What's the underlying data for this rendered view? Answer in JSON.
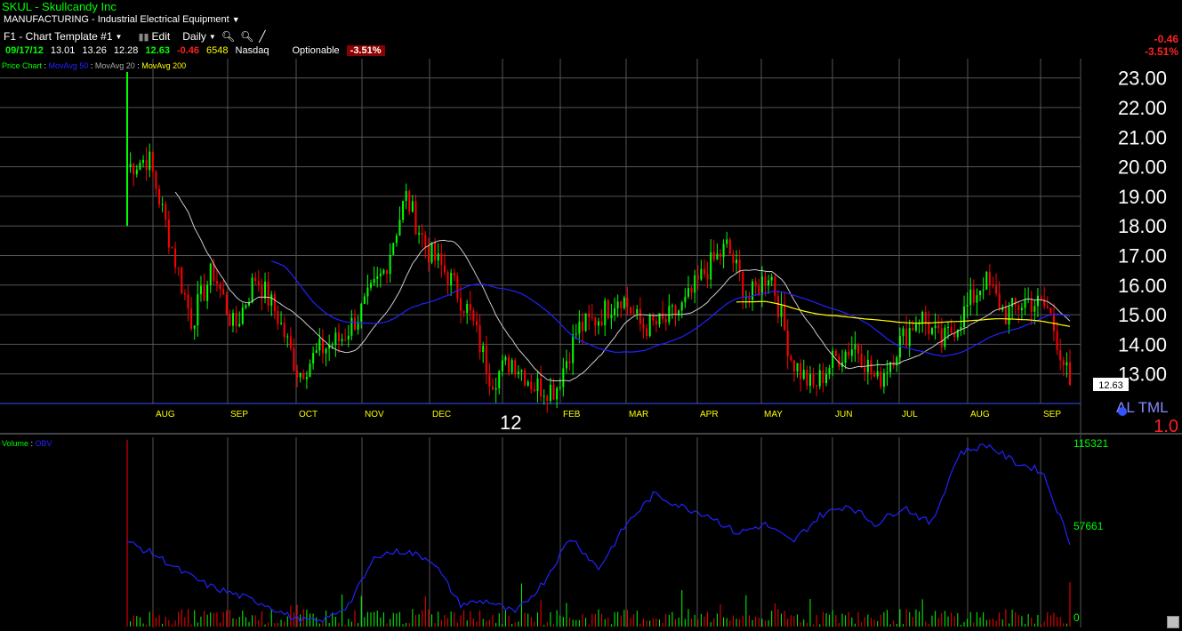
{
  "header": {
    "title": "SKUL - Skullcandy Inc",
    "industry": "MANUFACTURING - Industrial Electrical Equipment",
    "template": "F1 - Chart Template #1",
    "edit_label": "Edit",
    "period": "Daily"
  },
  "quote": {
    "date": "09/17/12",
    "open": "13.01",
    "high": "13.26",
    "low": "12.28",
    "last": "12.63",
    "change": "-0.46",
    "volume": "6548",
    "exchange": "Nasdaq",
    "optionable": "Optionable",
    "pct": "-3.51%"
  },
  "right_change": {
    "change": "-0.46",
    "pct": "-3.51%"
  },
  "price_legend": {
    "price": "Price Chart",
    "ma50": "MovAvg 50",
    "ma20": "MovAvg 20",
    "ma200": "MovAvg 200"
  },
  "volume_legend": {
    "volume": "Volume",
    "obv": "OBV"
  },
  "right_markers": {
    "al_tml": "AL TML",
    "scale": "1.0"
  },
  "colors": {
    "up": "#00ff00",
    "down": "#ff0000",
    "ma50": "#2222ff",
    "ma20": "#cccccc",
    "ma200": "#ffff00",
    "grid": "#555555"
  },
  "chart_data": [
    {
      "type": "candlestick",
      "title": "SKUL - Skullcandy Inc",
      "y_ticks": [
        "23.00",
        "22.00",
        "21.00",
        "20.00",
        "19.00",
        "18.00",
        "17.00",
        "16.00",
        "15.00",
        "14.00",
        "13.00"
      ],
      "ylim": [
        12.0,
        23.3
      ],
      "x_ticks": [
        "AUG",
        "SEP",
        "OCT",
        "NOV",
        "DEC",
        "12",
        "FEB",
        "MAR",
        "APR",
        "MAY",
        "JUN",
        "JUL",
        "AUG",
        "SEP"
      ],
      "last_price_label": "12.63",
      "close_approx": [
        {
          "x": "Jul-19",
          "y": 20.0
        },
        {
          "x": "Jul-25",
          "y": 20.3
        },
        {
          "x": "Aug-01",
          "y": 17.5
        },
        {
          "x": "Aug-05",
          "y": 14.8
        },
        {
          "x": "Aug-15",
          "y": 16.5
        },
        {
          "x": "Aug-25",
          "y": 14.5
        },
        {
          "x": "Sep-05",
          "y": 16.3
        },
        {
          "x": "Sep-15",
          "y": 15.0
        },
        {
          "x": "Sep-25",
          "y": 13.0
        },
        {
          "x": "Oct-01",
          "y": 13.8
        },
        {
          "x": "Oct-10",
          "y": 14.2
        },
        {
          "x": "Oct-20",
          "y": 15.2
        },
        {
          "x": "Oct-30",
          "y": 16.5
        },
        {
          "x": "Nov-05",
          "y": 19.0
        },
        {
          "x": "Nov-12",
          "y": 17.2
        },
        {
          "x": "Nov-20",
          "y": 16.3
        },
        {
          "x": "Nov-28",
          "y": 15.0
        },
        {
          "x": "Dec-05",
          "y": 12.8
        },
        {
          "x": "Dec-15",
          "y": 13.5
        },
        {
          "x": "Dec-28",
          "y": 12.6
        },
        {
          "x": "Jan-10",
          "y": 12.5
        },
        {
          "x": "Jan-25",
          "y": 14.5
        },
        {
          "x": "Feb-05",
          "y": 14.9
        },
        {
          "x": "Feb-15",
          "y": 15.7
        },
        {
          "x": "Feb-28",
          "y": 14.6
        },
        {
          "x": "Mar-10",
          "y": 14.7
        },
        {
          "x": "Mar-25",
          "y": 15.3
        },
        {
          "x": "Apr-05",
          "y": 16.5
        },
        {
          "x": "Apr-15",
          "y": 17.3
        },
        {
          "x": "Apr-25",
          "y": 15.5
        },
        {
          "x": "May-03",
          "y": 16.5
        },
        {
          "x": "May-10",
          "y": 13.5
        },
        {
          "x": "May-20",
          "y": 12.5
        },
        {
          "x": "Jun-01",
          "y": 13.5
        },
        {
          "x": "Jun-10",
          "y": 14.0
        },
        {
          "x": "Jun-20",
          "y": 12.7
        },
        {
          "x": "Jul-01",
          "y": 14.0
        },
        {
          "x": "Jul-10",
          "y": 15.0
        },
        {
          "x": "Jul-20",
          "y": 14.0
        },
        {
          "x": "Aug-01",
          "y": 15.0
        },
        {
          "x": "Aug-10",
          "y": 16.2
        },
        {
          "x": "Aug-20",
          "y": 15.0
        },
        {
          "x": "Aug-30",
          "y": 15.5
        },
        {
          "x": "Sep-10",
          "y": 15.2
        },
        {
          "x": "Sep-17",
          "y": 12.63
        }
      ]
    },
    {
      "type": "line",
      "title": "Volume : OBV",
      "y_ticks": [
        "115321",
        "57661",
        "0"
      ],
      "ylim": [
        0,
        115321
      ]
    }
  ]
}
